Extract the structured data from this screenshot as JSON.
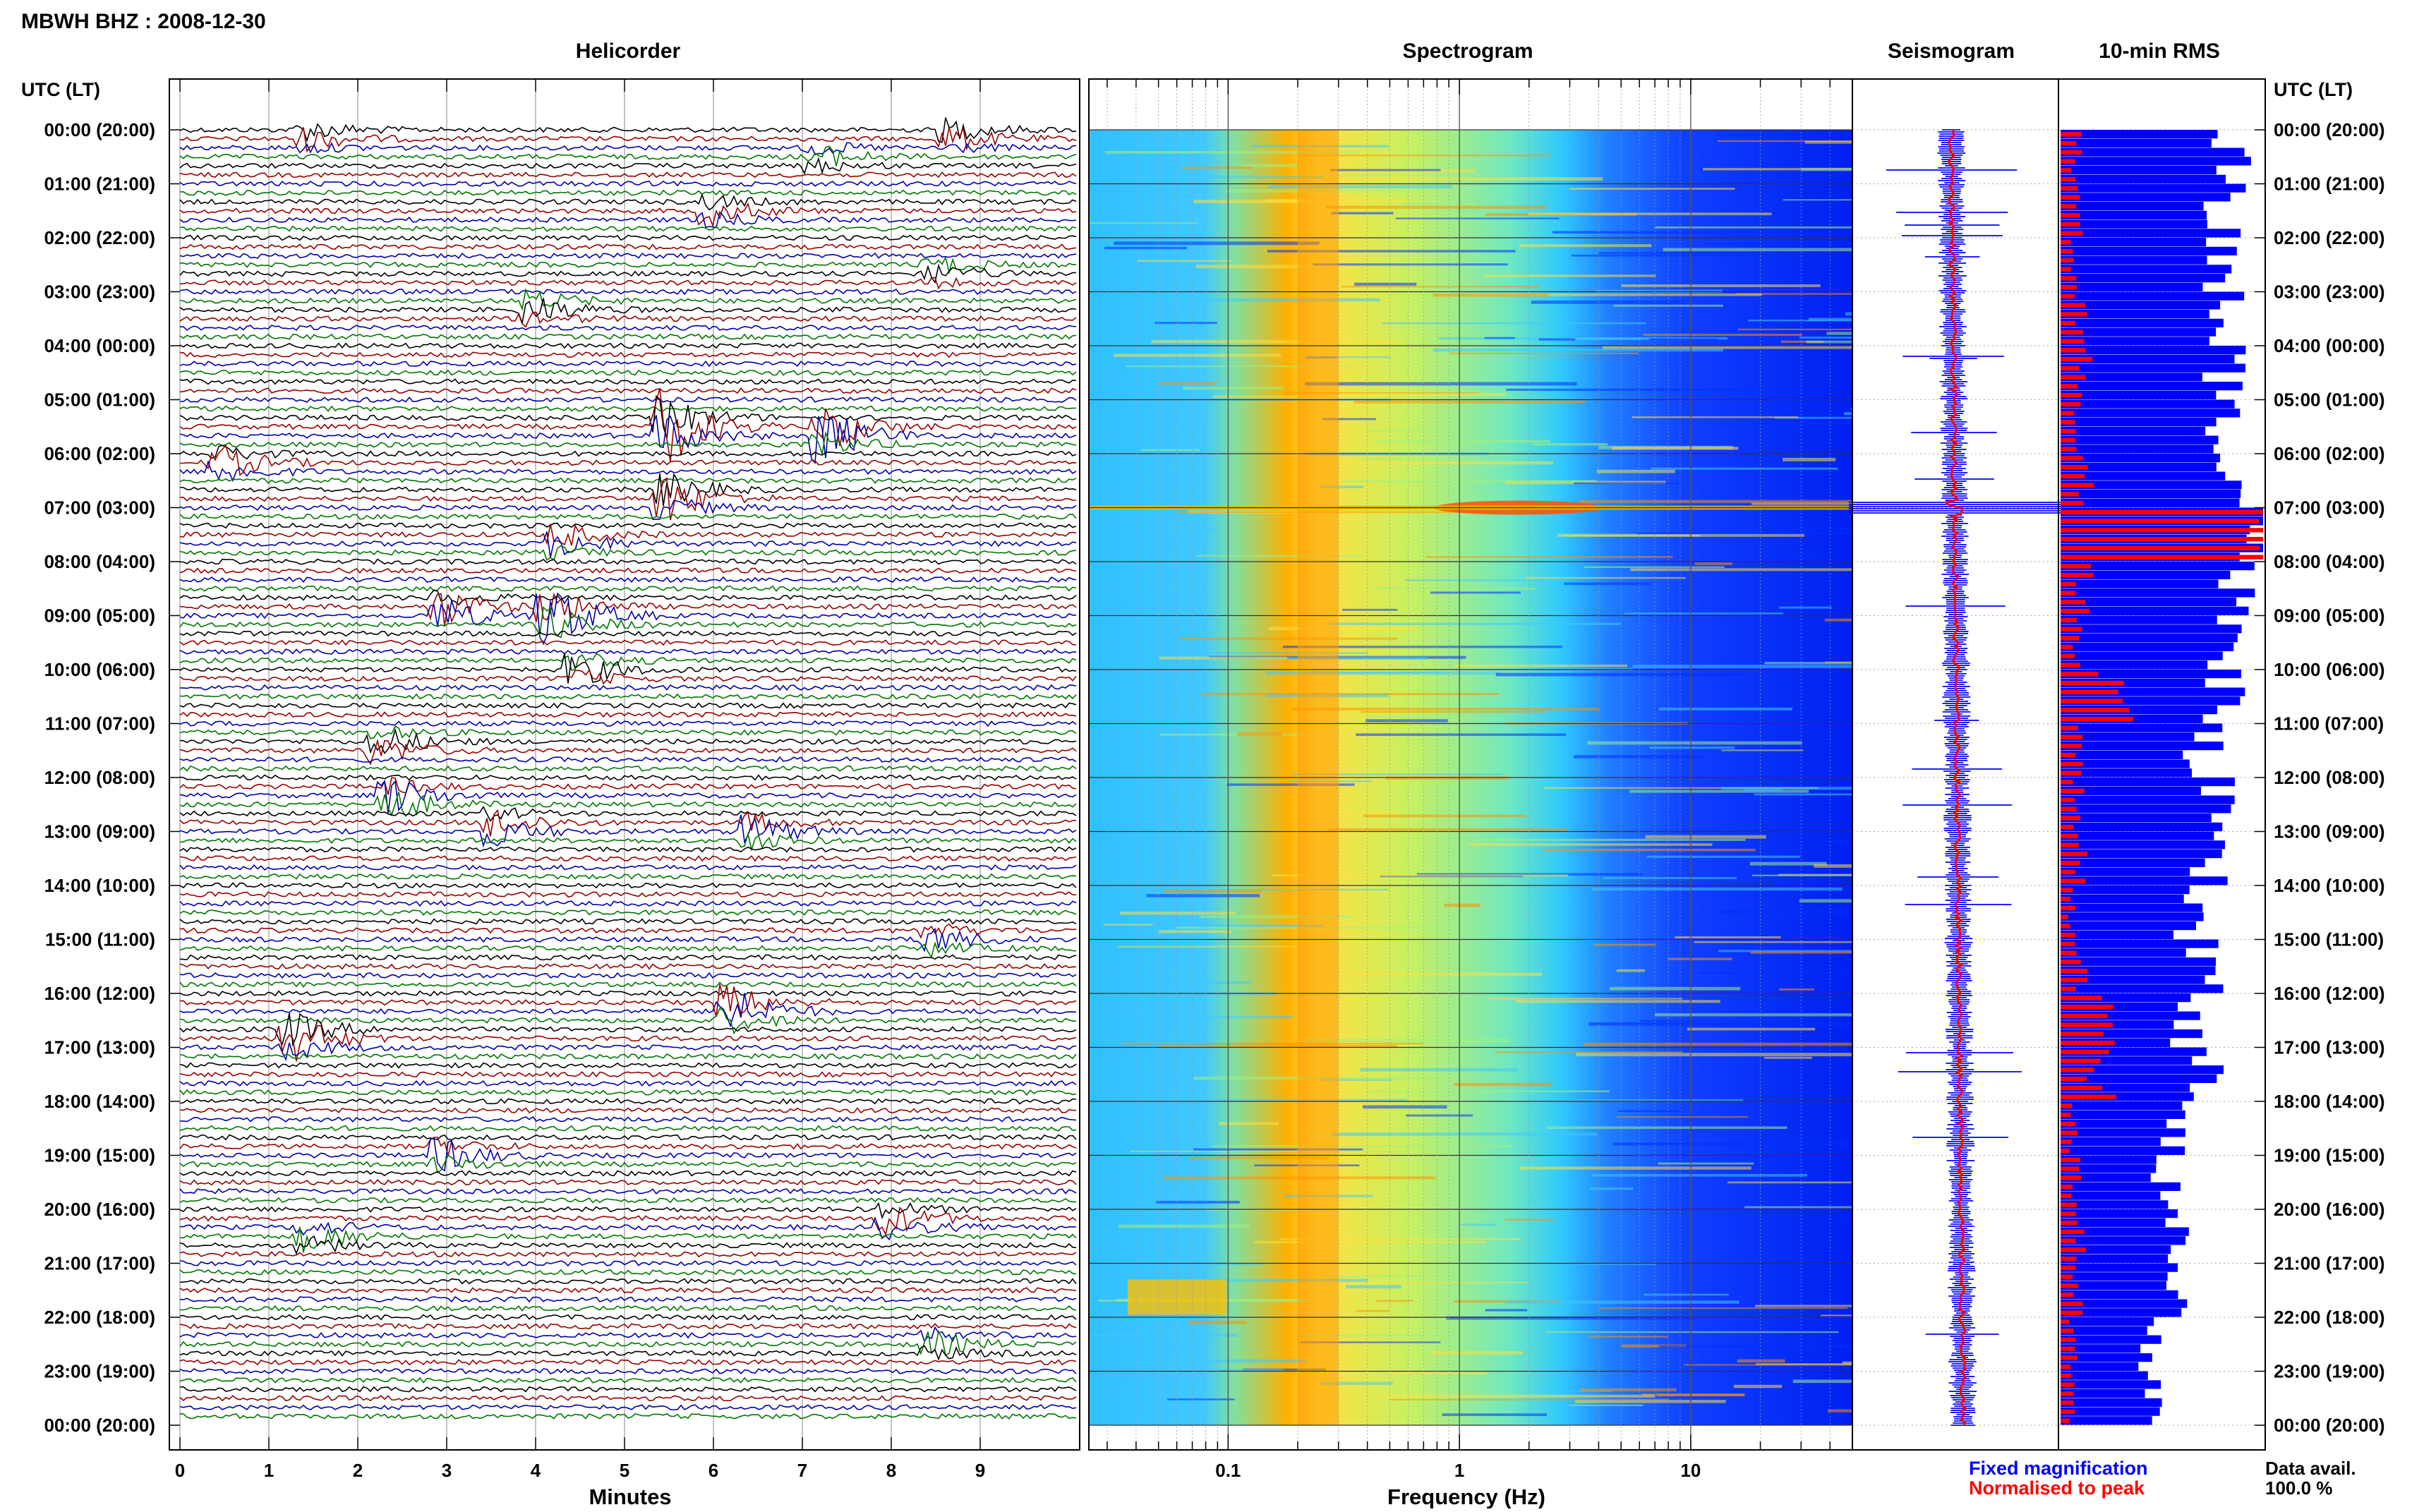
{
  "header": {
    "title": "MBWH BHZ : 2008-12-30",
    "utc_label": "UTC (LT)"
  },
  "panels": {
    "helicorder": {
      "title": "Helicorder",
      "xlabel": "Minutes"
    },
    "spectrogram": {
      "title": "Spectrogram",
      "xlabel": "Frequency (Hz)"
    },
    "seismogram": {
      "title": "Seismogram"
    },
    "rms": {
      "title": "10-min RMS"
    }
  },
  "legend": {
    "fixed": "Fixed magnification",
    "normalised": "Normalised to peak",
    "fixed_color": "#0000ff",
    "normalised_color": "#ff0000"
  },
  "availability": {
    "label": "Data avail.",
    "value": "100.0 %"
  },
  "colors": {
    "trace_colors": [
      "#000000",
      "#990000",
      "#0000aa",
      "#007700"
    ],
    "rms_fixed": "#0000ff",
    "rms_normalised": "#ff0000",
    "seismo_trace": "#ff0000",
    "seismo_envelope": "#0000ff"
  },
  "chart_data": [
    {
      "type": "line",
      "name": "helicorder",
      "title": "Helicorder",
      "xlabel": "Minutes",
      "x_ticks": [
        0,
        1,
        2,
        3,
        4,
        5,
        6,
        7,
        8,
        9
      ],
      "xlim": [
        0,
        10
      ],
      "time_labels": [
        "00:00 (20:00)",
        "01:00 (21:00)",
        "02:00 (22:00)",
        "03:00 (23:00)",
        "04:00 (00:00)",
        "05:00 (01:00)",
        "06:00 (02:00)",
        "07:00 (03:00)",
        "08:00 (04:00)",
        "09:00 (05:00)",
        "10:00 (06:00)",
        "11:00 (07:00)",
        "12:00 (08:00)",
        "13:00 (09:00)",
        "14:00 (10:00)",
        "15:00 (11:00)",
        "16:00 (12:00)",
        "17:00 (13:00)",
        "18:00 (14:00)",
        "19:00 (15:00)",
        "20:00 (16:00)",
        "21:00 (17:00)",
        "22:00 (18:00)",
        "23:00 (19:00)",
        "00:00 (20:00)"
      ],
      "lines_per_hour": 6,
      "events": [
        {
          "hour": 0.1,
          "minute": 1.5,
          "amp": 1.0
        },
        {
          "hour": 0.1,
          "minute": 8.7,
          "amp": 1.2
        },
        {
          "hour": 0.5,
          "minute": 7.2,
          "amp": 0.9
        },
        {
          "hour": 1.5,
          "minute": 6.0,
          "amp": 1.0
        },
        {
          "hour": 2.6,
          "minute": 8.5,
          "amp": 0.9
        },
        {
          "hour": 3.3,
          "minute": 4.0,
          "amp": 1.2
        },
        {
          "hour": 5.5,
          "minute": 5.5,
          "amp": 3.0
        },
        {
          "hour": 5.6,
          "minute": 7.3,
          "amp": 2.6
        },
        {
          "hour": 6.2,
          "minute": 0.5,
          "amp": 1.4
        },
        {
          "hour": 6.8,
          "minute": 5.5,
          "amp": 2.0
        },
        {
          "hour": 7.6,
          "minute": 4.3,
          "amp": 1.3
        },
        {
          "hour": 8.9,
          "minute": 3.0,
          "amp": 1.8
        },
        {
          "hour": 9.0,
          "minute": 4.2,
          "amp": 2.5
        },
        {
          "hour": 10.0,
          "minute": 4.5,
          "amp": 1.2
        },
        {
          "hour": 11.4,
          "minute": 2.3,
          "amp": 1.4
        },
        {
          "hour": 12.4,
          "minute": 2.4,
          "amp": 1.8
        },
        {
          "hour": 12.9,
          "minute": 3.6,
          "amp": 1.4
        },
        {
          "hour": 13.0,
          "minute": 6.5,
          "amp": 1.2
        },
        {
          "hour": 15.0,
          "minute": 8.5,
          "amp": 1.0
        },
        {
          "hour": 16.3,
          "minute": 6.2,
          "amp": 2.2
        },
        {
          "hour": 16.8,
          "minute": 1.3,
          "amp": 2.0
        },
        {
          "hour": 19.0,
          "minute": 3.0,
          "amp": 1.2
        },
        {
          "hour": 20.2,
          "minute": 8.0,
          "amp": 1.3
        },
        {
          "hour": 20.5,
          "minute": 1.5,
          "amp": 1.1
        },
        {
          "hour": 22.5,
          "minute": 8.5,
          "amp": 0.9
        }
      ]
    },
    {
      "type": "heatmap",
      "name": "spectrogram",
      "title": "Spectrogram",
      "xlabel": "Frequency (Hz)",
      "x_scale": "log",
      "xlim": [
        0.025,
        50
      ],
      "x_ticks": [
        0.1,
        1,
        10
      ],
      "x_tick_labels": [
        "0.1",
        "1",
        "10"
      ],
      "peak_band_hz": [
        0.2,
        0.3
      ],
      "colormap": [
        "#0000ff",
        "#00a0ff",
        "#00ffff",
        "#7fff7f",
        "#ffff00",
        "#ff7f00",
        "#ff0000"
      ]
    },
    {
      "type": "line",
      "name": "seismogram",
      "title": "Seismogram",
      "series": [
        {
          "name": "Fixed magnification",
          "color": "#0000ff"
        },
        {
          "name": "Normalised to peak",
          "color": "#ff0000"
        }
      ],
      "peak_hour": 7.0
    },
    {
      "type": "bar",
      "name": "10-min RMS",
      "title": "10-min RMS",
      "orientation": "horizontal",
      "hours": [
        0,
        1,
        2,
        3,
        4,
        5,
        6,
        7,
        8,
        9,
        10,
        11,
        12,
        13,
        14,
        15,
        16,
        17,
        18,
        19,
        20,
        21,
        22,
        23
      ],
      "fixed": [
        0.85,
        0.8,
        0.78,
        0.8,
        0.82,
        0.8,
        0.9,
        1.0,
        0.85,
        0.8,
        0.82,
        0.7,
        0.75,
        0.72,
        0.65,
        0.72,
        0.62,
        0.7,
        0.55,
        0.52,
        0.6,
        0.55,
        0.45,
        0.48
      ],
      "normalised": [
        0.08,
        0.1,
        0.06,
        0.1,
        0.12,
        0.08,
        0.12,
        1.0,
        0.12,
        0.1,
        0.3,
        0.08,
        0.1,
        0.12,
        0.06,
        0.1,
        0.25,
        0.2,
        0.06,
        0.08,
        0.1,
        0.08,
        0.06,
        0.05
      ]
    }
  ]
}
